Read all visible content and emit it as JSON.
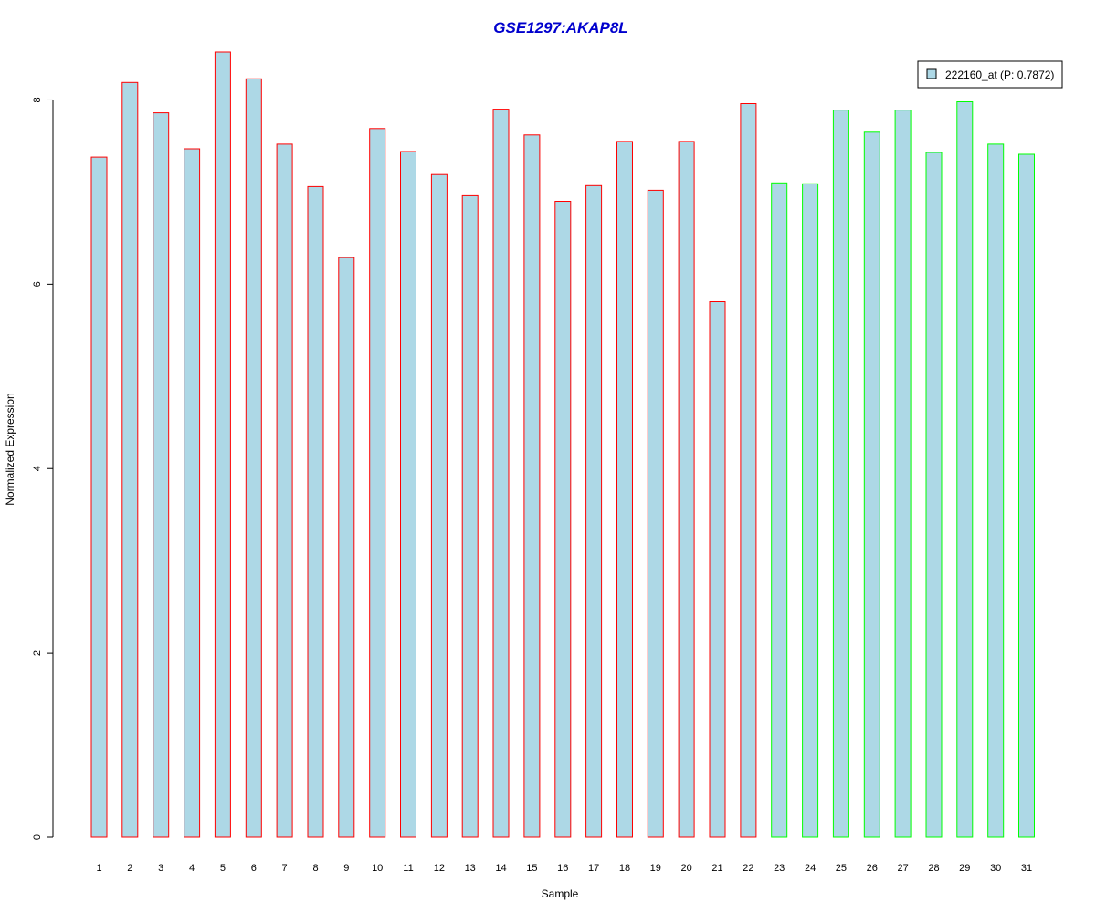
{
  "chart_data": {
    "type": "bar",
    "title": "GSE1297:AKAP8L",
    "xlabel": "Sample",
    "ylabel": "Normalized Expression",
    "categories": [
      "1",
      "2",
      "3",
      "4",
      "5",
      "6",
      "7",
      "8",
      "9",
      "10",
      "11",
      "12",
      "13",
      "14",
      "15",
      "16",
      "17",
      "18",
      "19",
      "20",
      "21",
      "22",
      "23",
      "24",
      "25",
      "26",
      "27",
      "28",
      "29",
      "30",
      "31"
    ],
    "series": [
      {
        "name": "222160_at (P: 0.7872)",
        "values": [
          7.38,
          8.19,
          7.86,
          7.47,
          8.52,
          8.23,
          7.52,
          7.06,
          6.29,
          7.69,
          7.44,
          7.19,
          6.96,
          7.9,
          7.62,
          6.9,
          7.07,
          7.55,
          7.02,
          7.55,
          5.81,
          7.96,
          7.1,
          7.09,
          7.89,
          7.65,
          7.89,
          7.43,
          7.98,
          7.52,
          7.41
        ]
      }
    ],
    "groups": [
      "red",
      "red",
      "red",
      "red",
      "red",
      "red",
      "red",
      "red",
      "red",
      "red",
      "red",
      "red",
      "red",
      "red",
      "red",
      "red",
      "red",
      "red",
      "red",
      "red",
      "red",
      "red",
      "green",
      "green",
      "green",
      "green",
      "green",
      "green",
      "green",
      "green",
      "green"
    ],
    "ylim": [
      0,
      8.5
    ],
    "yticks": [
      0,
      2,
      4,
      6,
      8
    ],
    "grid": false,
    "legend_position": "top-right",
    "colors": {
      "bar_fill": "#add8e6",
      "border_red": "#ff0000",
      "border_green": "#00ff00",
      "title": "#0000cd",
      "axis": "#000000"
    }
  }
}
